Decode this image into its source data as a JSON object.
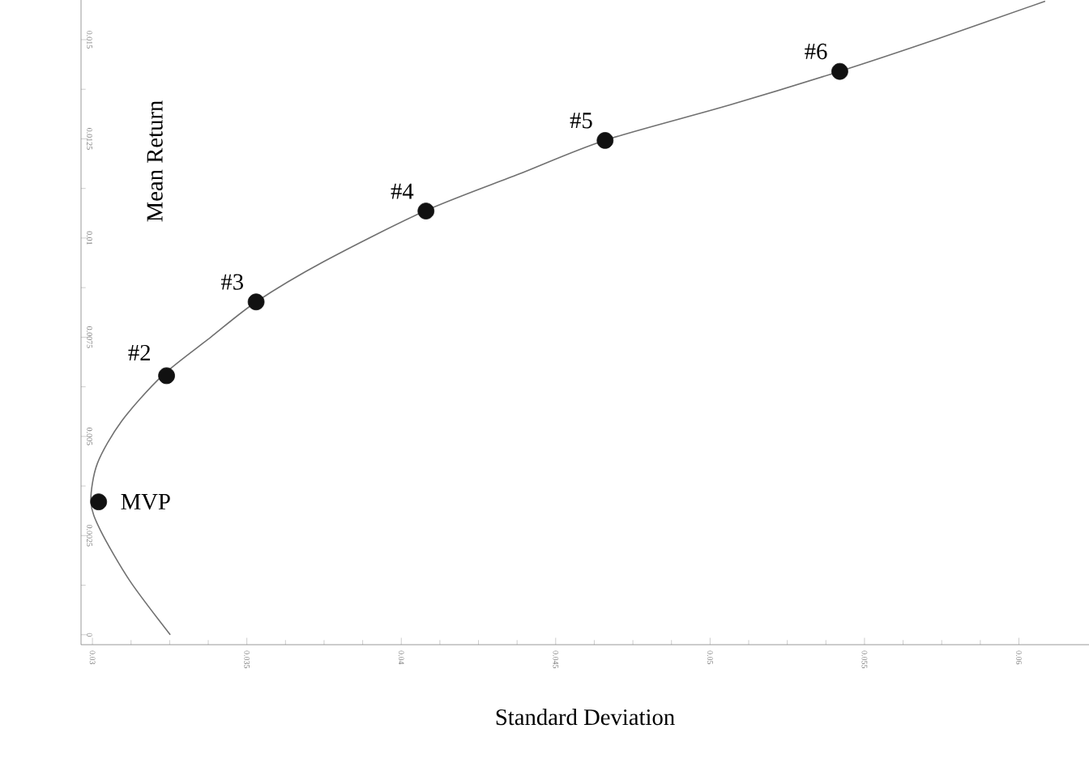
{
  "chart_data": {
    "type": "line",
    "xlabel": "Standard Deviation",
    "ylabel": "Mean Return",
    "xlim": [
      0.02963,
      0.06227
    ],
    "ylim": [
      -0.00025,
      0.016
    ],
    "xticks": [
      0.03,
      0.035,
      0.04,
      0.045,
      0.05,
      0.055,
      0.06
    ],
    "yticks": [
      0,
      0.0025,
      0.005,
      0.0075,
      0.01,
      0.0125,
      0.015
    ],
    "series": [
      {
        "color": "#707070",
        "marker": "none",
        "line_style": "solid",
        "x": [
          0.03252,
          0.03121,
          0.03026,
          0.02995,
          0.03016,
          0.03094,
          0.03226,
          0.03383,
          0.0353,
          0.0375,
          0.04076,
          0.0438,
          0.04658,
          0.05062,
          0.05419,
          0.05744,
          0.06085
        ],
        "values": [
          0,
          0.00136,
          0.00263,
          0.00335,
          0.00432,
          0.00538,
          0.00653,
          0.0075,
          0.00839,
          0.00941,
          0.01068,
          0.01161,
          0.01246,
          0.01335,
          0.0142,
          0.01504,
          0.01597
        ]
      },
      {
        "type": "scatter",
        "color": "#111111",
        "marker": "circle",
        "x": [
          0.0302,
          0.0324,
          0.0353,
          0.0408,
          0.0466,
          0.0542
        ],
        "values": [
          0.00335,
          0.00653,
          0.00839,
          0.01068,
          0.01246,
          0.0142
        ]
      }
    ],
    "annotations": [
      {
        "text": "MVP",
        "x": 0.0302,
        "y": 0.00335
      },
      {
        "text": "#2",
        "x": 0.0324,
        "y": 0.00653
      },
      {
        "text": "#3",
        "x": 0.0353,
        "y": 0.00839
      },
      {
        "text": "#4",
        "x": 0.0408,
        "y": 0.01068
      },
      {
        "text": "#5",
        "x": 0.0466,
        "y": 0.01246
      },
      {
        "text": "#6",
        "x": 0.0542,
        "y": 0.0142
      }
    ]
  }
}
